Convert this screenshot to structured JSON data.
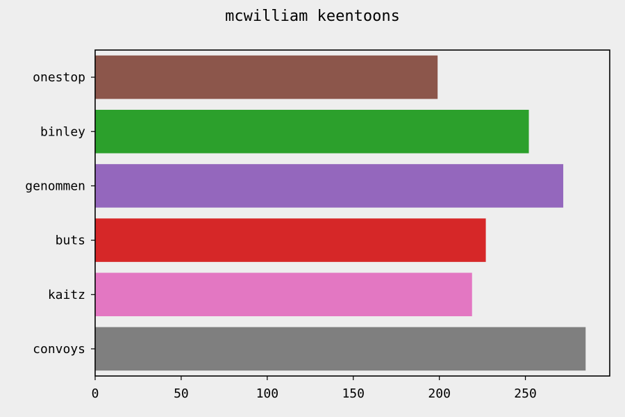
{
  "chart_data": {
    "type": "bar",
    "orientation": "horizontal",
    "title": "mcwilliam keentoons",
    "xlabel": "",
    "ylabel": "",
    "categories": [
      "onestop",
      "binley",
      "genommen",
      "buts",
      "kaitz",
      "convoys"
    ],
    "values": [
      199,
      252,
      272,
      227,
      219,
      285
    ],
    "colors": [
      "#8c564b",
      "#2ca02c",
      "#9467bd",
      "#d62728",
      "#e377c2",
      "#7f7f7f"
    ],
    "xlim": [
      0,
      299
    ],
    "xticks": [
      0,
      50,
      100,
      150,
      200,
      250
    ],
    "grid": false,
    "legend": "none"
  }
}
